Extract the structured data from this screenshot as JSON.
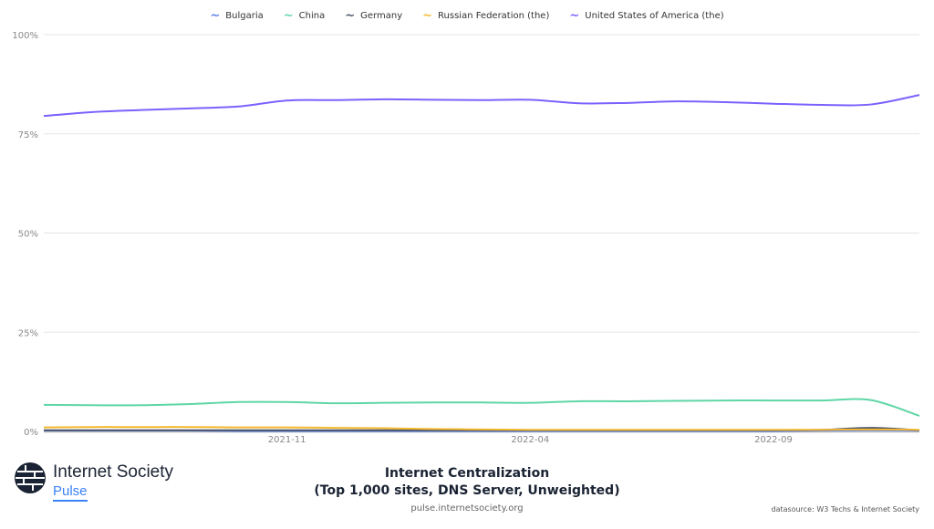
{
  "chart_data": {
    "type": "line",
    "title": "Internet Centralization",
    "subtitle": "(Top 1,000 sites, DNS Server, Unweighted)",
    "xlabel": "",
    "ylabel": "",
    "ylim": [
      0,
      100
    ],
    "yticks": [
      "0%",
      "25%",
      "50%",
      "75%",
      "100%"
    ],
    "ytick_values": [
      0,
      25,
      50,
      75,
      100
    ],
    "xtick_labels": [
      "2021-11",
      "2022-04",
      "2022-09"
    ],
    "xtick_index": [
      5,
      10,
      15
    ],
    "x": [
      "2021-06",
      "2021-07",
      "2021-08",
      "2021-09",
      "2021-10",
      "2021-11",
      "2021-12",
      "2022-01",
      "2022-02",
      "2022-03",
      "2022-04",
      "2022-05",
      "2022-06",
      "2022-07",
      "2022-08",
      "2022-09",
      "2022-10",
      "2022-11",
      "2022-12"
    ],
    "legend_position": "top-center",
    "grid": true,
    "series": [
      {
        "name": "Bulgaria",
        "color": "#5b7fe6",
        "values": [
          0.2,
          0.2,
          0.2,
          0.2,
          0.1,
          0.1,
          0.1,
          0.1,
          0.1,
          0.1,
          0.1,
          0.1,
          0.1,
          0.1,
          0.1,
          0.1,
          0.2,
          0.3,
          0.2
        ]
      },
      {
        "name": "China",
        "color": "#5fd6a6",
        "values": [
          6.7,
          6.6,
          6.6,
          6.9,
          7.4,
          7.4,
          7.1,
          7.2,
          7.3,
          7.3,
          7.2,
          7.6,
          7.6,
          7.7,
          7.8,
          7.8,
          7.8,
          7.9,
          3.9
        ]
      },
      {
        "name": "Germany",
        "color": "#4a5568",
        "values": [
          0.3,
          0.3,
          0.3,
          0.3,
          0.3,
          0.3,
          0.3,
          0.3,
          0.3,
          0.3,
          0.3,
          0.3,
          0.3,
          0.3,
          0.3,
          0.3,
          0.4,
          0.9,
          0.3
        ]
      },
      {
        "name": "Russian Federation (the)",
        "color": "#f5b82e",
        "values": [
          1.0,
          1.1,
          1.1,
          1.1,
          1.0,
          1.0,
          0.9,
          0.8,
          0.6,
          0.5,
          0.4,
          0.4,
          0.4,
          0.4,
          0.4,
          0.4,
          0.4,
          0.5,
          0.4
        ]
      },
      {
        "name": "United States of America (the)",
        "color": "#7b61ff",
        "values": [
          79.5,
          80.5,
          81,
          81.4,
          81.9,
          83.4,
          83.5,
          83.7,
          83.6,
          83.5,
          83.6,
          82.7,
          82.8,
          83.2,
          83,
          82.6,
          82.3,
          82.4,
          84.8
        ]
      }
    ]
  },
  "branding": {
    "name": "Internet Society",
    "product": "Pulse"
  },
  "footer": {
    "url": "pulse.internetsociety.org",
    "datasource": "datasource: W3 Techs & Internet Society"
  }
}
